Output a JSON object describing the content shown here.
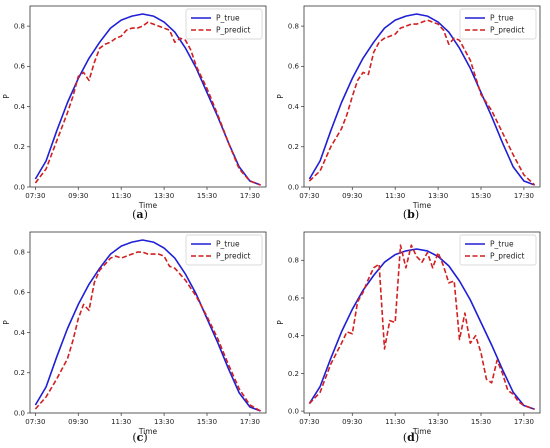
{
  "colors": {
    "true": "#1f1fd6",
    "predict": "#d21f1f"
  },
  "chart_data": [
    {
      "panel": "a",
      "caption_open": "(",
      "caption_letter": "a",
      "caption_close": ")",
      "type": "line",
      "xlabel": "Time",
      "ylabel": "P",
      "ylim": [
        0,
        0.9
      ],
      "x_ticks": [
        "07:30",
        "09:30",
        "11:30",
        "13:30",
        "15:30",
        "17:30"
      ],
      "y_ticks": [
        "0.0",
        "0.2",
        "0.4",
        "0.6",
        "0.8"
      ],
      "legend_position": "top-right",
      "series": [
        {
          "name": "P_true",
          "style": "solid",
          "x": [
            7.5,
            8,
            8.5,
            9,
            9.5,
            10,
            10.5,
            11,
            11.5,
            12,
            12.5,
            13,
            13.5,
            14,
            14.5,
            15,
            15.5,
            16,
            16.5,
            17,
            17.5,
            18
          ],
          "values": [
            0.04,
            0.13,
            0.28,
            0.42,
            0.54,
            0.64,
            0.72,
            0.79,
            0.83,
            0.85,
            0.86,
            0.85,
            0.82,
            0.77,
            0.69,
            0.59,
            0.47,
            0.35,
            0.22,
            0.1,
            0.03,
            0.01
          ]
        },
        {
          "name": "P_predict",
          "style": "dashed",
          "x": [
            7.5,
            8,
            8.5,
            9,
            9.25,
            9.5,
            9.75,
            10,
            10.25,
            10.5,
            10.75,
            11,
            11.25,
            11.5,
            11.75,
            12,
            12.25,
            12.5,
            12.75,
            13,
            13.25,
            13.5,
            13.75,
            14,
            14.25,
            14.5,
            14.75,
            15,
            15.5,
            16,
            16.5,
            17,
            17.5,
            18
          ],
          "values": [
            0.02,
            0.09,
            0.23,
            0.37,
            0.45,
            0.55,
            0.57,
            0.53,
            0.62,
            0.69,
            0.71,
            0.72,
            0.74,
            0.75,
            0.78,
            0.79,
            0.79,
            0.8,
            0.82,
            0.81,
            0.8,
            0.79,
            0.78,
            0.72,
            0.74,
            0.73,
            0.68,
            0.6,
            0.49,
            0.36,
            0.22,
            0.09,
            0.03,
            0.01
          ]
        }
      ]
    },
    {
      "panel": "b",
      "caption_open": "(",
      "caption_letter": "b",
      "caption_close": ")",
      "type": "line",
      "xlabel": "Time",
      "ylabel": "P",
      "ylim": [
        0,
        0.9
      ],
      "x_ticks": [
        "07:30",
        "09:30",
        "11:30",
        "13:30",
        "15:30",
        "17:30"
      ],
      "y_ticks": [
        "0.0",
        "0.2",
        "0.4",
        "0.6",
        "0.8"
      ],
      "legend_position": "top-right",
      "series": [
        {
          "name": "P_true",
          "style": "solid",
          "x": [
            7.5,
            8,
            8.5,
            9,
            9.5,
            10,
            10.5,
            11,
            11.5,
            12,
            12.5,
            13,
            13.5,
            14,
            14.5,
            15,
            15.5,
            16,
            16.5,
            17,
            17.5,
            18
          ],
          "values": [
            0.04,
            0.13,
            0.28,
            0.42,
            0.54,
            0.64,
            0.72,
            0.79,
            0.83,
            0.85,
            0.86,
            0.85,
            0.82,
            0.77,
            0.69,
            0.59,
            0.47,
            0.35,
            0.22,
            0.1,
            0.03,
            0.01
          ]
        },
        {
          "name": "P_predict",
          "style": "dashed",
          "x": [
            7.5,
            8,
            8.5,
            9,
            9.25,
            9.5,
            9.75,
            10,
            10.25,
            10.5,
            10.75,
            11,
            11.25,
            11.5,
            11.75,
            12,
            12.25,
            12.5,
            12.75,
            13,
            13.25,
            13.5,
            13.75,
            14,
            14.25,
            14.5,
            15,
            15.5,
            16,
            16.5,
            17,
            17.5,
            18
          ],
          "values": [
            0.03,
            0.08,
            0.2,
            0.29,
            0.36,
            0.45,
            0.53,
            0.57,
            0.56,
            0.67,
            0.72,
            0.74,
            0.75,
            0.76,
            0.79,
            0.8,
            0.81,
            0.81,
            0.82,
            0.83,
            0.82,
            0.81,
            0.78,
            0.71,
            0.74,
            0.73,
            0.63,
            0.46,
            0.38,
            0.27,
            0.16,
            0.06,
            0.01
          ]
        }
      ]
    },
    {
      "panel": "c",
      "caption_open": "(",
      "caption_letter": "c",
      "caption_close": ")",
      "type": "line",
      "xlabel": "Time",
      "ylabel": "P",
      "ylim": [
        0,
        0.9
      ],
      "x_ticks": [
        "07:30",
        "09:30",
        "11:30",
        "13:30",
        "15:30",
        "17:30"
      ],
      "y_ticks": [
        "0.0",
        "0.2",
        "0.4",
        "0.6",
        "0.8"
      ],
      "legend_position": "top-right",
      "series": [
        {
          "name": "P_true",
          "style": "solid",
          "x": [
            7.5,
            8,
            8.5,
            9,
            9.5,
            10,
            10.5,
            11,
            11.5,
            12,
            12.5,
            13,
            13.5,
            14,
            14.5,
            15,
            15.5,
            16,
            16.5,
            17,
            17.5,
            18
          ],
          "values": [
            0.04,
            0.13,
            0.28,
            0.42,
            0.54,
            0.64,
            0.72,
            0.79,
            0.83,
            0.85,
            0.86,
            0.85,
            0.82,
            0.77,
            0.69,
            0.59,
            0.47,
            0.35,
            0.22,
            0.1,
            0.03,
            0.01
          ]
        },
        {
          "name": "P_predict",
          "style": "dashed",
          "x": [
            7.5,
            8,
            8.5,
            9,
            9.25,
            9.5,
            9.75,
            10,
            10.25,
            10.5,
            10.75,
            11,
            11.25,
            11.5,
            11.75,
            12,
            12.25,
            12.5,
            12.75,
            13,
            13.25,
            13.5,
            13.75,
            14,
            14.5,
            15,
            15.5,
            16,
            16.5,
            17,
            17.5,
            18
          ],
          "values": [
            0.02,
            0.08,
            0.17,
            0.27,
            0.36,
            0.47,
            0.54,
            0.51,
            0.65,
            0.71,
            0.74,
            0.77,
            0.78,
            0.77,
            0.78,
            0.79,
            0.8,
            0.8,
            0.79,
            0.79,
            0.79,
            0.78,
            0.73,
            0.72,
            0.66,
            0.58,
            0.48,
            0.37,
            0.24,
            0.12,
            0.04,
            0.01
          ]
        }
      ]
    },
    {
      "panel": "d",
      "caption_open": "(",
      "caption_letter": "d",
      "caption_close": ")",
      "type": "line",
      "xlabel": "Time",
      "ylabel": "P",
      "ylim": [
        -0.01,
        0.95
      ],
      "x_ticks": [
        "07:30",
        "09:30",
        "11:30",
        "13:30",
        "15:30",
        "17:30"
      ],
      "y_ticks": [
        "0.0",
        "0.2",
        "0.4",
        "0.6",
        "0.8"
      ],
      "legend_position": "top-right",
      "series": [
        {
          "name": "P_true",
          "style": "solid",
          "x": [
            7.5,
            8,
            8.5,
            9,
            9.5,
            10,
            10.5,
            11,
            11.5,
            12,
            12.5,
            13,
            13.5,
            14,
            14.5,
            15,
            15.5,
            16,
            16.5,
            17,
            17.5,
            18
          ],
          "values": [
            0.04,
            0.13,
            0.28,
            0.42,
            0.54,
            0.64,
            0.72,
            0.79,
            0.83,
            0.85,
            0.86,
            0.85,
            0.82,
            0.77,
            0.69,
            0.59,
            0.47,
            0.35,
            0.22,
            0.1,
            0.03,
            0.01
          ]
        },
        {
          "name": "P_predict",
          "style": "dashed",
          "x": [
            7.5,
            8,
            8.5,
            9,
            9.25,
            9.5,
            9.75,
            10,
            10.25,
            10.5,
            10.75,
            11,
            11.25,
            11.5,
            11.75,
            12,
            12.25,
            12.5,
            12.75,
            13,
            13.25,
            13.5,
            13.75,
            14,
            14.25,
            14.5,
            14.75,
            15,
            15.25,
            15.5,
            15.75,
            16,
            16.25,
            16.5,
            16.75,
            17,
            17.25,
            17.5,
            18
          ],
          "values": [
            0.04,
            0.1,
            0.25,
            0.36,
            0.42,
            0.41,
            0.58,
            0.63,
            0.7,
            0.76,
            0.78,
            0.33,
            0.48,
            0.47,
            0.88,
            0.76,
            0.88,
            0.82,
            0.79,
            0.84,
            0.76,
            0.84,
            0.77,
            0.68,
            0.69,
            0.38,
            0.52,
            0.36,
            0.4,
            0.31,
            0.17,
            0.15,
            0.27,
            0.2,
            0.11,
            0.09,
            0.05,
            0.03,
            0.01
          ]
        }
      ]
    }
  ]
}
